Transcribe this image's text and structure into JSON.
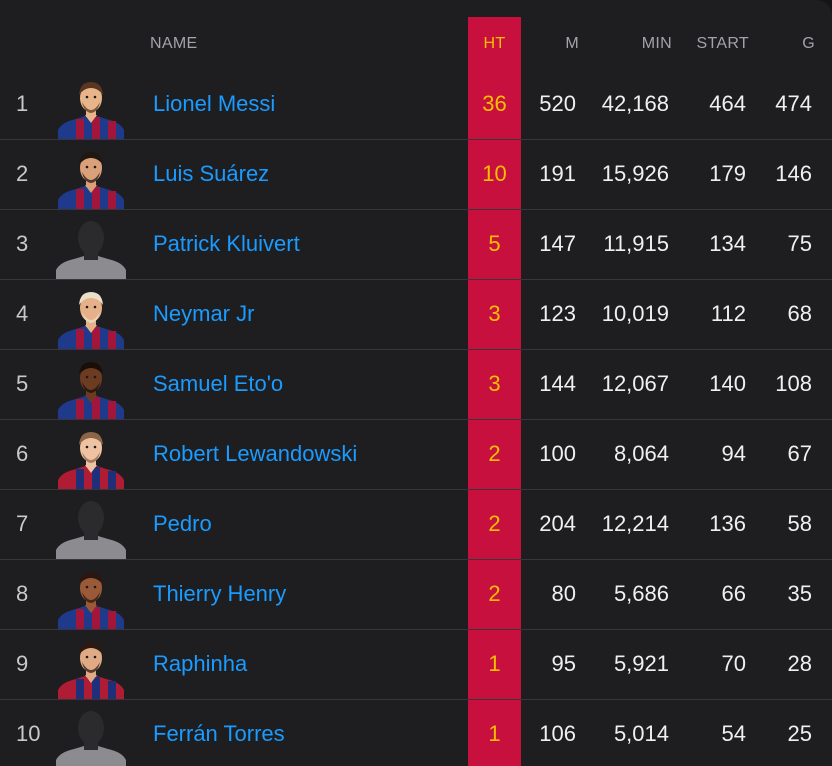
{
  "header": {
    "name": "NAME",
    "ht": "HT",
    "m": "M",
    "min": "MIN",
    "start": "START",
    "g": "G"
  },
  "colors": {
    "accent_column": "#c8103f",
    "ht_text": "#f6c000",
    "link": "#1a9bff"
  },
  "rows": [
    {
      "rank": "1",
      "name": "Lionel Messi",
      "ht": "36",
      "m": "520",
      "min": "42,168",
      "start": "464",
      "g": "474",
      "avatar": "player-kit",
      "skin": "#e8b48a",
      "hair": "#5a3520",
      "kit": "barca"
    },
    {
      "rank": "2",
      "name": "Luis Suárez",
      "ht": "10",
      "m": "191",
      "min": "15,926",
      "start": "179",
      "g": "146",
      "avatar": "player-kit",
      "skin": "#d9a07a",
      "hair": "#1f1712",
      "kit": "barca"
    },
    {
      "rank": "3",
      "name": "Patrick Kluivert",
      "ht": "5",
      "m": "147",
      "min": "11,915",
      "start": "134",
      "g": "75",
      "avatar": "silhouette",
      "skin": "",
      "hair": "",
      "kit": "grey"
    },
    {
      "rank": "4",
      "name": "Neymar Jr",
      "ht": "3",
      "m": "123",
      "min": "10,019",
      "start": "112",
      "g": "68",
      "avatar": "player-kit",
      "skin": "#e6b088",
      "hair": "#e8e0c8",
      "kit": "barca"
    },
    {
      "rank": "5",
      "name": "Samuel Eto'o",
      "ht": "3",
      "m": "144",
      "min": "12,067",
      "start": "140",
      "g": "108",
      "avatar": "player-kit",
      "skin": "#6b3b22",
      "hair": "#1a0f08",
      "kit": "barca"
    },
    {
      "rank": "6",
      "name": "Robert Lewandowski",
      "ht": "2",
      "m": "100",
      "min": "8,064",
      "start": "94",
      "g": "67",
      "avatar": "player-kit",
      "skin": "#eec2a2",
      "hair": "#8a6547",
      "kit": "barca-red"
    },
    {
      "rank": "7",
      "name": "Pedro",
      "ht": "2",
      "m": "204",
      "min": "12,214",
      "start": "136",
      "g": "58",
      "avatar": "silhouette",
      "skin": "",
      "hair": "",
      "kit": "grey"
    },
    {
      "rank": "8",
      "name": "Thierry Henry",
      "ht": "2",
      "m": "80",
      "min": "5,686",
      "start": "66",
      "g": "35",
      "avatar": "player-kit",
      "skin": "#9a5a38",
      "hair": "#2a1810",
      "kit": "barca"
    },
    {
      "rank": "9",
      "name": "Raphinha",
      "ht": "1",
      "m": "95",
      "min": "5,921",
      "start": "70",
      "g": "28",
      "avatar": "player-kit",
      "skin": "#e0aa85",
      "hair": "#2a1a12",
      "kit": "barca-red"
    },
    {
      "rank": "10",
      "name": "Ferrán Torres",
      "ht": "1",
      "m": "106",
      "min": "5,014",
      "start": "54",
      "g": "25",
      "avatar": "silhouette",
      "skin": "",
      "hair": "",
      "kit": "grey"
    }
  ]
}
